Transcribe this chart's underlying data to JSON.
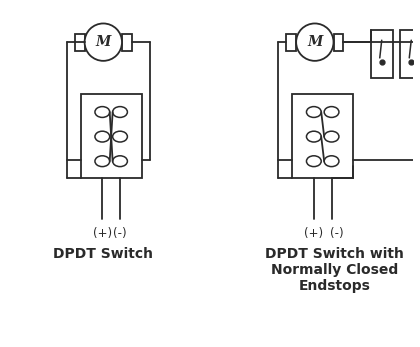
{
  "bg_color": "#ffffff",
  "line_color": "#2a2a2a",
  "label1": "DPDT Switch",
  "label2": "DPDT Switch with\nNormally Closed\nEndstops",
  "plus_label": "(+)",
  "minus_label": "(-)",
  "title_fontsize": 10,
  "label_fontsize": 8.5
}
